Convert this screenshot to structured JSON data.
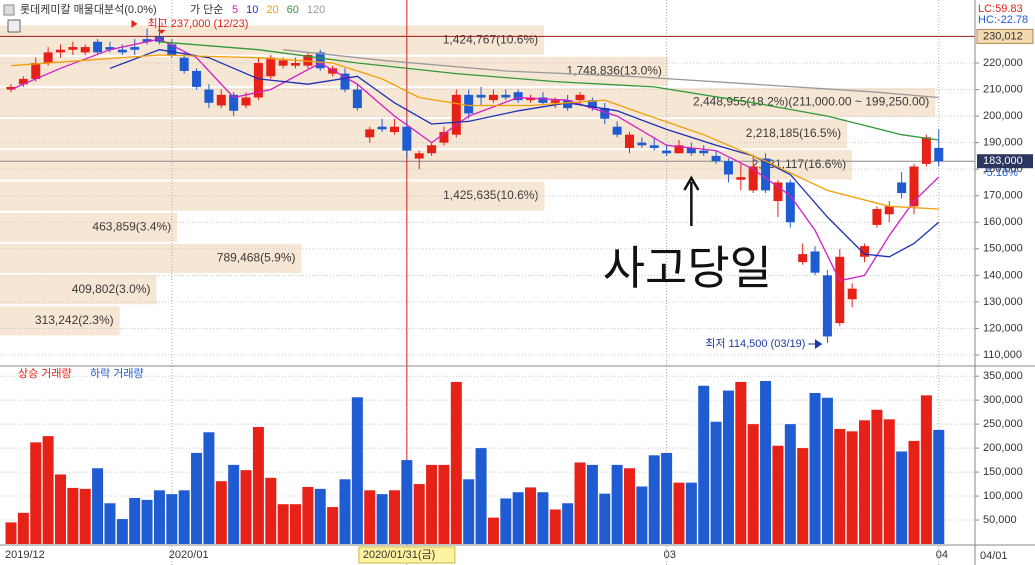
{
  "chart_data": [
    {
      "type": "candlestick",
      "title": "롯데케미칼 매물대분석(0.0%)",
      "ma_title": "가 단순",
      "categories": [
        "2019/12",
        null,
        null,
        null,
        null,
        null,
        null,
        null,
        null,
        null,
        null,
        null,
        null,
        "2020/01",
        null,
        null,
        null,
        null,
        null,
        null,
        null,
        null,
        null,
        null,
        null,
        null,
        null,
        null,
        null,
        null,
        null,
        null,
        "2020/01/31(금)",
        null,
        null,
        null,
        null,
        null,
        null,
        null,
        null,
        null,
        null,
        null,
        null,
        null,
        null,
        null,
        null,
        null,
        null,
        null,
        null,
        "03",
        null,
        null,
        null,
        null,
        null,
        null,
        null,
        null,
        null,
        null,
        null,
        null,
        null,
        null,
        null,
        null,
        null,
        null,
        null,
        null,
        null,
        "04"
      ],
      "x_end_label": "04/01",
      "open": [
        210000,
        212000,
        214000,
        220000,
        224000,
        225000,
        224000,
        228000,
        226000,
        225000,
        226000,
        229000,
        230000,
        227000,
        222000,
        217000,
        210000,
        204000,
        208000,
        204000,
        207000,
        215000,
        219000,
        219000,
        219000,
        224000,
        216000,
        216000,
        210000,
        192000,
        196000,
        194000,
        196000,
        184000,
        186000,
        190000,
        193000,
        208000,
        208000,
        206000,
        208000,
        209000,
        206000,
        207000,
        205000,
        206000,
        206000,
        206000,
        203000,
        196000,
        188000,
        190000,
        189000,
        187000,
        186000,
        188000,
        187000,
        185000,
        183000,
        176000,
        172000,
        184000,
        168000,
        175000,
        145000,
        149000,
        140000,
        122000,
        131000,
        147000,
        159000,
        163000,
        175000,
        166000,
        182000,
        188000
      ],
      "high": [
        212000,
        215000,
        222000,
        226000,
        227000,
        228000,
        227000,
        229000,
        228000,
        227000,
        229000,
        233000,
        237000,
        229000,
        224000,
        218000,
        212000,
        210000,
        209000,
        209000,
        222000,
        223000,
        222000,
        222000,
        224000,
        225000,
        219000,
        218000,
        212000,
        196000,
        199000,
        199000,
        198000,
        187000,
        190000,
        196000,
        210000,
        210000,
        211000,
        210000,
        210000,
        210000,
        208000,
        209000,
        207000,
        208000,
        209000,
        207000,
        205000,
        198000,
        194000,
        192000,
        192000,
        189000,
        191000,
        190000,
        189000,
        187000,
        184000,
        182000,
        185000,
        186000,
        176000,
        176000,
        152000,
        151000,
        142000,
        150000,
        137000,
        152000,
        166000,
        168000,
        179000,
        182000,
        193000,
        195000
      ],
      "low": [
        209000,
        211000,
        213000,
        219000,
        222000,
        223000,
        223000,
        223000,
        224000,
        223000,
        223000,
        227000,
        227000,
        222000,
        216000,
        210000,
        203000,
        203000,
        200000,
        203000,
        206000,
        214000,
        218000,
        218000,
        218000,
        217000,
        215000,
        209000,
        202000,
        190000,
        194000,
        193000,
        184000,
        180000,
        185000,
        189000,
        192000,
        199000,
        204000,
        205000,
        206000,
        205000,
        205000,
        204000,
        203000,
        202000,
        204000,
        202000,
        197000,
        192000,
        186000,
        188000,
        187000,
        185000,
        186000,
        185000,
        185000,
        182000,
        175000,
        172000,
        171000,
        171000,
        162000,
        158000,
        144000,
        140000,
        114500,
        121000,
        128000,
        145000,
        158000,
        160000,
        169000,
        163000,
        181000,
        181000
      ],
      "close": [
        211000,
        214000,
        220000,
        224000,
        225000,
        226000,
        226000,
        224000,
        225000,
        224000,
        225000,
        228000,
        228000,
        223000,
        217000,
        211000,
        205000,
        208000,
        202000,
        207000,
        220000,
        222000,
        221000,
        220000,
        223000,
        218000,
        218000,
        210000,
        203000,
        195000,
        195000,
        196000,
        187000,
        186000,
        189000,
        194000,
        208000,
        201000,
        207000,
        208000,
        207000,
        206000,
        207000,
        205000,
        206000,
        203000,
        208000,
        203000,
        199000,
        193000,
        193000,
        189000,
        188000,
        186000,
        189000,
        186000,
        186000,
        183000,
        178000,
        177000,
        181000,
        172000,
        175000,
        160000,
        148000,
        141000,
        117000,
        147000,
        135000,
        151000,
        165000,
        166000,
        171000,
        181000,
        192000,
        183000
      ],
      "up_color": "#e62117",
      "down_color": "#1f5bd1",
      "ylim": [
        106000,
        242000
      ],
      "yticks": [
        {
          "value": 110000,
          "label": "110,000"
        },
        {
          "value": 120000,
          "label": "120,000"
        },
        {
          "value": 130000,
          "label": "130,000"
        },
        {
          "value": 140000,
          "label": "140,000"
        },
        {
          "value": 150000,
          "label": "150,000"
        },
        {
          "value": 160000,
          "label": "160,000"
        },
        {
          "value": 170000,
          "label": "170,000"
        },
        {
          "value": 180000,
          "label": "180,000"
        },
        {
          "value": 190000,
          "label": "190,000"
        },
        {
          "value": 200000,
          "label": "200,000"
        },
        {
          "value": 210000,
          "label": "210,000"
        },
        {
          "value": 220000,
          "label": "220,000"
        }
      ],
      "grid": true,
      "moving_averages": [
        {
          "name": "5",
          "color": "#d21fc6",
          "x": [
            0,
            4,
            8,
            12,
            15,
            18,
            21,
            25,
            28,
            31,
            34,
            37,
            41,
            45,
            49,
            53,
            57,
            60,
            63,
            65,
            67,
            69,
            71,
            73,
            75
          ],
          "values": [
            210000,
            218000,
            225000,
            229000,
            222000,
            207000,
            210000,
            220000,
            212000,
            200000,
            190000,
            200000,
            207000,
            206000,
            200000,
            189000,
            187000,
            180000,
            170000,
            157000,
            138000,
            140000,
            155000,
            168000,
            177000
          ]
        },
        {
          "name": "10",
          "color": "#1c2fb8",
          "x": [
            8,
            12,
            16,
            20,
            24,
            28,
            31,
            34,
            37,
            41,
            45,
            49,
            53,
            57,
            60,
            63,
            66,
            69,
            71,
            73,
            75
          ],
          "values": [
            218000,
            225000,
            222000,
            214000,
            212000,
            215000,
            205000,
            197000,
            198000,
            202000,
            205000,
            202000,
            195000,
            189000,
            185000,
            178000,
            162000,
            148000,
            147000,
            152000,
            160000
          ]
        },
        {
          "name": "20",
          "color": "#f0a00a",
          "x": [
            0,
            6,
            12,
            20,
            26,
            30,
            33,
            37,
            42,
            48,
            51,
            56,
            61,
            66,
            71,
            75
          ],
          "values": [
            219000,
            221000,
            223000,
            222000,
            220000,
            214000,
            207000,
            204000,
            204000,
            206000,
            201000,
            193000,
            183000,
            172000,
            166000,
            165000
          ]
        },
        {
          "name": "60",
          "color": "#2f9a3a",
          "x": [
            12,
            20,
            28,
            36,
            44,
            52,
            60,
            66,
            72,
            75
          ],
          "values": [
            228000,
            225000,
            220000,
            216000,
            213000,
            211000,
            205000,
            200000,
            193000,
            191000
          ]
        },
        {
          "name": "120",
          "color": "#9a9a9a",
          "x": [
            22,
            30,
            40,
            50,
            60,
            70,
            75
          ],
          "values": [
            225000,
            221000,
            217000,
            215000,
            212000,
            209000,
            207000
          ]
        }
      ],
      "volume_profile": {
        "color": "#f6e6d4",
        "bins": [
          234500,
          222750,
          211000,
          199250,
          187500,
          175750,
          164000,
          152250,
          140500,
          128750,
          117000
        ],
        "values": [
          1424767,
          1748836,
          2448955,
          2218185,
          2231117,
          1425635,
          463859,
          789468,
          409802,
          313242
        ],
        "value_labels": [
          "1,424,767(10.6%)",
          "1,748,836(13.0%)",
          "2,448,955(18.2%)(211,000.00 ~ 199,250.00)",
          "2,218,185(16.5%)",
          "2,231,117(16.6%)",
          "1,425,635(10.6%)",
          "463,859(3.4%)",
          "789,468(5.9%)",
          "409,802(3.0%)",
          "313,242(2.3%)"
        ],
        "xlim": [
          0,
          2600000
        ]
      },
      "max_label": {
        "text": "최고 237,000 (12/23)",
        "x": 12,
        "value": 237000
      },
      "min_label": {
        "text": "최저 114,500 (03/19)",
        "x": 66,
        "value": 114500
      },
      "event": {
        "text": "사고당일",
        "x": 55
      },
      "highlight_x": 32,
      "reference_line": {
        "value": 230012,
        "label": "230,012",
        "color": "#a01818"
      },
      "last_price": {
        "value": 183000,
        "label": "183,000",
        "change": "-5.18%"
      },
      "indicators": [
        {
          "text": "LC:59.83",
          "color": "#e62117"
        },
        {
          "text": "HC:-22.78",
          "color": "#1f5bd1"
        }
      ]
    },
    {
      "type": "bar",
      "legend": [
        {
          "name": "상승 거래량",
          "color": "#e62117"
        },
        {
          "name": "하락 거래량",
          "color": "#1f5bd1"
        }
      ],
      "values": [
        45000,
        65000,
        212000,
        225000,
        145000,
        117000,
        115000,
        158000,
        85000,
        52000,
        96000,
        92000,
        112000,
        104000,
        112000,
        190000,
        233000,
        131000,
        165000,
        154000,
        244000,
        138000,
        83000,
        83000,
        119000,
        115000,
        77000,
        135000,
        306000,
        112000,
        104000,
        112000,
        175000,
        125000,
        165000,
        165000,
        338000,
        135000,
        200000,
        55000,
        95000,
        108000,
        118000,
        108000,
        72000,
        85000,
        170000,
        165000,
        105000,
        165000,
        158000,
        120000,
        185000,
        190000,
        128000,
        128000,
        330000,
        255000,
        320000,
        338000,
        250000,
        340000,
        205000,
        250000,
        200000,
        315000,
        305000,
        240000,
        235000,
        258000,
        280000,
        260000,
        193000,
        215000,
        310000,
        238000
      ],
      "ylim": [
        0,
        365000
      ],
      "yticks": [
        {
          "value": 50000,
          "label": "50,000"
        },
        {
          "value": 100000,
          "label": "100,000"
        },
        {
          "value": 150000,
          "label": "150,000"
        },
        {
          "value": 200000,
          "label": "200,000"
        },
        {
          "value": 250000,
          "label": "250,000"
        },
        {
          "value": 300000,
          "label": "300,000"
        },
        {
          "value": 350000,
          "label": "350,000"
        }
      ]
    }
  ]
}
